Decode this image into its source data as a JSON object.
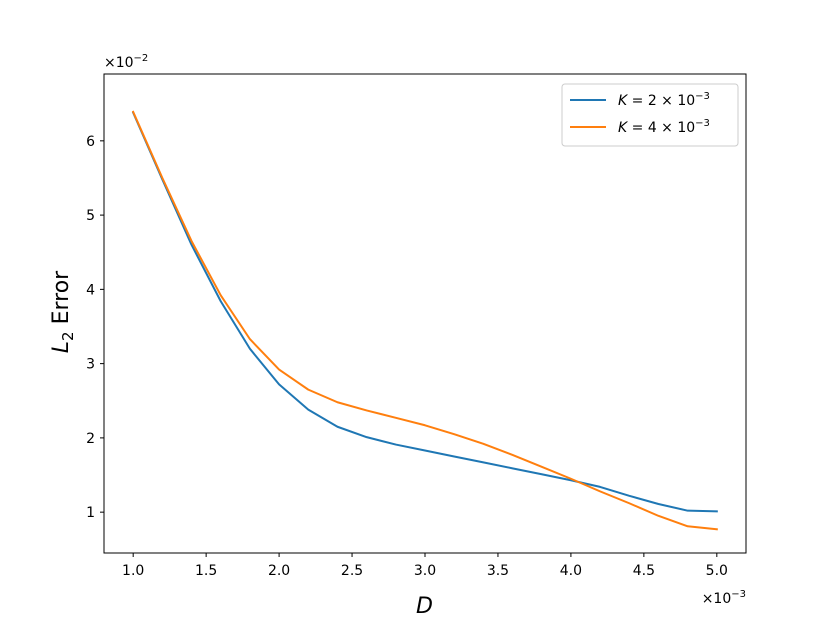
{
  "chart_data": {
    "type": "line",
    "xlabel": "D",
    "ylabel_main": "L",
    "ylabel_sub": "2",
    "ylabel_rest": " Error",
    "x_offset": {
      "base": "×10",
      "exp": "−3"
    },
    "y_offset": {
      "base": "×10",
      "exp": "−2"
    },
    "xlim": [
      0.8,
      5.2
    ],
    "ylim": [
      0.45,
      6.9
    ],
    "x_ticks": [
      1.0,
      1.5,
      2.0,
      2.5,
      3.0,
      3.5,
      4.0,
      4.5,
      5.0
    ],
    "x_tick_labels": [
      "1.0",
      "1.5",
      "2.0",
      "2.5",
      "3.0",
      "3.5",
      "4.0",
      "4.5",
      "5.0"
    ],
    "y_ticks": [
      1,
      2,
      3,
      4,
      5,
      6
    ],
    "y_tick_labels": [
      "1",
      "2",
      "3",
      "4",
      "5",
      "6"
    ],
    "grid": false,
    "legend_position": "top-right",
    "series": [
      {
        "name_prefix": "K",
        "name_mid": " = 2 × 10",
        "name_exp": "−3",
        "color": "#1f77b4",
        "x": [
          1.0,
          1.2,
          1.4,
          1.6,
          1.8,
          2.0,
          2.2,
          2.4,
          2.6,
          2.8,
          3.0,
          3.2,
          3.4,
          3.6,
          3.8,
          4.0,
          4.2,
          4.4,
          4.6,
          4.8,
          5.0
        ],
        "y": [
          6.38,
          5.48,
          4.6,
          3.84,
          3.2,
          2.72,
          2.38,
          2.15,
          2.01,
          1.91,
          1.83,
          1.75,
          1.67,
          1.59,
          1.51,
          1.43,
          1.34,
          1.22,
          1.11,
          1.02,
          1.01
        ]
      },
      {
        "name_prefix": "K",
        "name_mid": " = 4 × 10",
        "name_exp": "−3",
        "color": "#ff7f0e",
        "x": [
          1.0,
          1.2,
          1.4,
          1.6,
          1.8,
          2.0,
          2.2,
          2.4,
          2.6,
          2.8,
          3.0,
          3.2,
          3.4,
          3.6,
          3.8,
          4.0,
          4.2,
          4.4,
          4.6,
          4.8,
          5.0
        ],
        "y": [
          6.39,
          5.5,
          4.65,
          3.92,
          3.33,
          2.92,
          2.65,
          2.48,
          2.37,
          2.27,
          2.17,
          2.05,
          1.92,
          1.77,
          1.61,
          1.45,
          1.28,
          1.12,
          0.95,
          0.81,
          0.77
        ]
      }
    ]
  }
}
